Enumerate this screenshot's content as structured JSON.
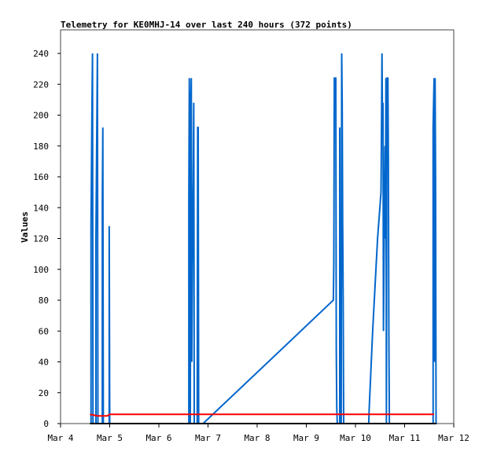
{
  "chart_data": {
    "type": "line",
    "title": "Telemetry for KE0MHJ-14 over last 240 hours (372 points)",
    "xlabel": "",
    "ylabel": "Values",
    "x_unit": "days since Mar 4 00:00",
    "xlim": [
      0,
      8
    ],
    "ylim": [
      0,
      255
    ],
    "x_ticks": [
      {
        "v": 0,
        "label": "Mar 4"
      },
      {
        "v": 1,
        "label": "Mar 5"
      },
      {
        "v": 2,
        "label": "Mar 6"
      },
      {
        "v": 3,
        "label": "Mar 7"
      },
      {
        "v": 4,
        "label": "Mar 8"
      },
      {
        "v": 5,
        "label": "Mar 9"
      },
      {
        "v": 6,
        "label": "Mar 10"
      },
      {
        "v": 7,
        "label": "Mar 11"
      },
      {
        "v": 8,
        "label": "Mar 12"
      }
    ],
    "y_ticks": [
      0,
      20,
      40,
      60,
      80,
      100,
      120,
      140,
      160,
      180,
      200,
      220,
      240
    ],
    "grid": false,
    "series": [
      {
        "name": "blue",
        "color": "#0066cc",
        "points": [
          [
            0.62,
            0
          ],
          [
            0.62,
            128
          ],
          [
            0.64,
            208
          ],
          [
            0.65,
            240
          ],
          [
            0.66,
            0
          ],
          [
            0.72,
            0
          ],
          [
            0.72,
            120
          ],
          [
            0.75,
            240
          ],
          [
            0.76,
            0
          ],
          [
            0.85,
            0
          ],
          [
            0.85,
            144
          ],
          [
            0.86,
            192
          ],
          [
            0.87,
            0
          ],
          [
            0.99,
            0
          ],
          [
            0.99,
            128
          ],
          [
            1.0,
            0
          ],
          [
            2.61,
            0
          ],
          [
            2.61,
            144
          ],
          [
            2.62,
            224
          ],
          [
            2.64,
            0
          ],
          [
            2.65,
            208
          ],
          [
            2.66,
            224
          ],
          [
            2.67,
            40
          ],
          [
            2.68,
            100
          ],
          [
            2.7,
            160
          ],
          [
            2.71,
            208
          ],
          [
            2.72,
            0
          ],
          [
            2.78,
            0
          ],
          [
            2.79,
            192
          ],
          [
            2.8,
            192
          ],
          [
            2.81,
            0
          ],
          [
            2.9,
            0
          ],
          [
            5.55,
            80
          ],
          [
            5.56,
            104
          ],
          [
            5.57,
            224
          ],
          [
            5.59,
            224
          ],
          [
            5.6,
            224
          ],
          [
            5.61,
            48
          ],
          [
            5.62,
            10
          ],
          [
            5.63,
            0
          ],
          [
            5.68,
            0
          ],
          [
            5.68,
            192
          ],
          [
            5.69,
            0
          ],
          [
            5.71,
            0
          ],
          [
            5.72,
            240
          ],
          [
            5.73,
            208
          ],
          [
            5.74,
            130
          ],
          [
            5.75,
            80
          ],
          [
            5.76,
            0
          ],
          [
            6.27,
            0
          ],
          [
            6.28,
            10
          ],
          [
            6.35,
            60
          ],
          [
            6.45,
            120
          ],
          [
            6.52,
            150
          ],
          [
            6.53,
            192
          ],
          [
            6.54,
            240
          ],
          [
            6.55,
            192
          ],
          [
            6.56,
            208
          ],
          [
            6.57,
            60
          ],
          [
            6.58,
            100
          ],
          [
            6.6,
            180
          ],
          [
            6.61,
            120
          ],
          [
            6.62,
            224
          ],
          [
            6.63,
            0
          ],
          [
            6.64,
            224
          ],
          [
            6.66,
            224
          ],
          [
            6.67,
            168
          ],
          [
            6.68,
            56
          ],
          [
            6.69,
            0
          ],
          [
            7.58,
            0
          ],
          [
            7.58,
            192
          ],
          [
            7.6,
            224
          ],
          [
            7.61,
            40
          ],
          [
            7.62,
            224
          ],
          [
            7.63,
            160
          ],
          [
            7.64,
            0
          ]
        ]
      },
      {
        "name": "red",
        "color": "#ff0000",
        "points": [
          [
            0.6,
            6
          ],
          [
            0.75,
            5
          ],
          [
            0.95,
            5
          ],
          [
            1.0,
            6
          ],
          [
            7.6,
            6
          ]
        ]
      },
      {
        "name": "black",
        "color": "#000000",
        "points": [
          [
            0.6,
            0
          ],
          [
            7.65,
            0
          ]
        ]
      }
    ]
  }
}
